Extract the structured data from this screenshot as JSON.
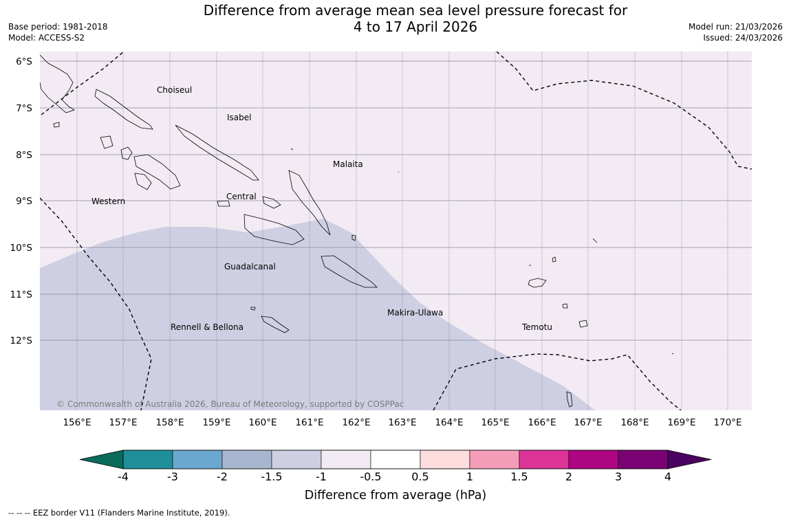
{
  "title_line1": "Difference from average mean sea level pressure forecast for",
  "title_line2": "4 to 17 April 2026",
  "base_period": "Base period: 1981-2018",
  "model": "Model: ACCESS-S2",
  "model_run": "Model run: 21/03/2026",
  "issued": "Issued: 24/03/2026",
  "copyright": "© Commonwealth of Australia 2026, Bureau of Meteorology, supported by COSPPac",
  "footnote": "--  --  -- EEZ border V11 (Flanders Marine Institute, 2019).",
  "lat_labels": [
    "6°S",
    "7°S",
    "8°S",
    "9°S",
    "10°S",
    "11°S",
    "12°S"
  ],
  "lon_labels": [
    "156°E",
    "157°E",
    "158°E",
    "159°E",
    "160°E",
    "161°E",
    "162°E",
    "163°E",
    "164°E",
    "165°E",
    "166°E",
    "167°E",
    "168°E",
    "169°E",
    "170°E"
  ],
  "places": {
    "choiseul": "Choiseul",
    "isabel": "Isabel",
    "malaita": "Malaita",
    "western": "Western",
    "central": "Central",
    "guadalcanal": "Guadalcanal",
    "rennell": "Rennell & Bellona",
    "makira": "Makira-Ulawa",
    "temotu": "Temotu"
  },
  "colorbar": {
    "title": "Difference from average (hPa)",
    "labels": [
      "-4",
      "-3",
      "-2",
      "-1.5",
      "-1",
      "-0.5",
      "0.5",
      "1",
      "1.5",
      "2",
      "3",
      "4"
    ],
    "colors": {
      "below_min": "#0b6b5a",
      "bins": [
        "#1f8f9a",
        "#6aa8d0",
        "#a8b6d0",
        "#cfcfe3",
        "#f3ebf4",
        "#ffffff",
        "#fddddd",
        "#f59db8",
        "#dc3597",
        "#ae0583",
        "#7b0275"
      ],
      "above_max": "#4b0160"
    }
  },
  "map_fill": {
    "background_bin": "-1 to -0.5",
    "lower_region_bin": "-1.5 to -1"
  }
}
